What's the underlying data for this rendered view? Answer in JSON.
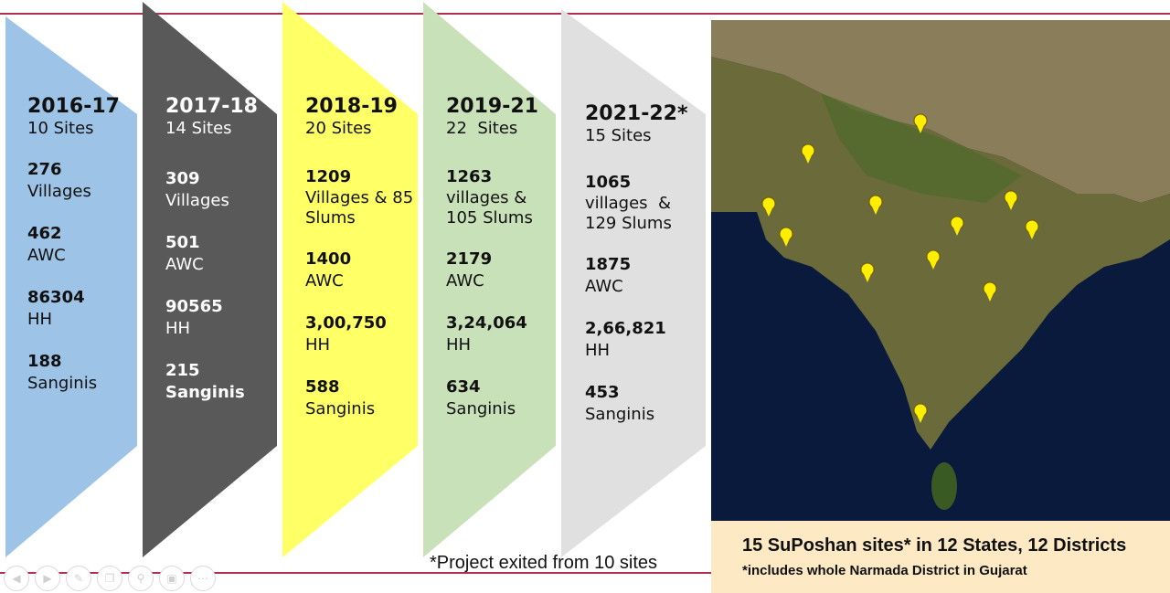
{
  "columns": [
    {
      "year": "2016-17",
      "sites": "10 Sites",
      "metrics": [
        {
          "num": "276",
          "label": "Villages"
        },
        {
          "num": "462",
          "label": "AWC"
        },
        {
          "num": "86304",
          "label": "HH"
        },
        {
          "num": "188",
          "label": "Sanginis"
        }
      ],
      "fill": "#9dc3e6"
    },
    {
      "year": "2017-18",
      "sites": "14 Sites",
      "metrics": [
        {
          "num": "309",
          "label": "Villages"
        },
        {
          "num": "501",
          "label": "AWC"
        },
        {
          "num": "90565",
          "label": "HH"
        },
        {
          "num": "215",
          "label": "Sanginis"
        }
      ],
      "fill": "#595959"
    },
    {
      "year": "2018-19",
      "sites": "20 Sites",
      "metrics": [
        {
          "num": "1209",
          "label": "Villages & 85 Slums"
        },
        {
          "num": "1400",
          "label": "AWC"
        },
        {
          "num": "3,00,750",
          "label": "HH"
        },
        {
          "num": "588",
          "label": "Sanginis"
        }
      ],
      "fill": "#ffff66"
    },
    {
      "year": "2019-21",
      "sites": "22  Sites",
      "metrics": [
        {
          "num": "1263",
          "label": "villages & 105 Slums"
        },
        {
          "num": "2179",
          "label": "AWC"
        },
        {
          "num": "3,24,064",
          "label": "HH"
        },
        {
          "num": "634",
          "label": "Sanginis"
        }
      ],
      "fill": "#c9e1b8"
    },
    {
      "year": "2021-22*",
      "sites": "15 Sites",
      "metrics": [
        {
          "num": "1065",
          "label": "villages  & 129 Slums"
        },
        {
          "num": "1875",
          "label": "AWC"
        },
        {
          "num": "2,66,821",
          "label": "HH"
        },
        {
          "num": "453",
          "label": "Sanginis"
        }
      ],
      "fill": "#e0e0e0"
    }
  ],
  "footnote": "*Project exited from 10 sites",
  "map": {
    "caption_title": "15 SuPoshan sites* in 12 States, 12 Districts",
    "caption_note": "*includes whole Narmada District in Gujarat",
    "ocean_color": "#0a1a3c",
    "land_color": "#6b6a3a",
    "marker_color": "#ffee00"
  },
  "nav_icons": [
    "back-icon",
    "forward-icon",
    "pen-icon",
    "copy-icon",
    "zoom-icon",
    "screen-icon",
    "more-icon"
  ]
}
